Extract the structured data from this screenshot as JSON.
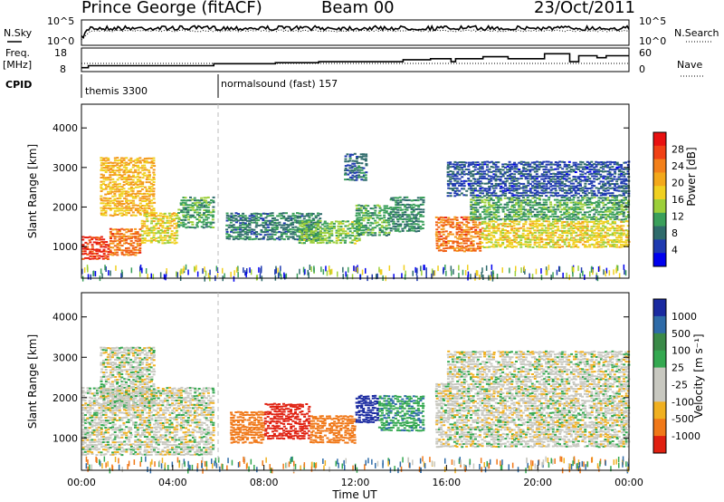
{
  "header": {
    "station": "Prince George (fitACF)",
    "beam": "Beam 00",
    "date": "23/Oct/2011"
  },
  "top_panels": {
    "left_labels": [
      "N.Sky",
      "Freq.",
      "[MHz]",
      "CPID"
    ],
    "right_labels": [
      "N.Search",
      "Nave"
    ],
    "noise_ticks": [
      "10^5",
      "10^0"
    ],
    "freq_ticks": [
      "18",
      "8"
    ],
    "nave_ticks": [
      "60",
      "0"
    ],
    "cpid_segments": [
      {
        "label": "themis 3300",
        "start_hour": 0.0
      },
      {
        "label": "normalsound (fast) 157",
        "start_hour": 6.0
      }
    ],
    "freq_steps_mhz": [
      [
        0.0,
        9.5
      ],
      [
        0.3,
        10.5
      ],
      [
        4.0,
        10.5
      ],
      [
        5.8,
        11.5
      ],
      [
        8.4,
        11.5
      ],
      [
        8.5,
        12.0
      ],
      [
        10.3,
        12.0
      ],
      [
        10.4,
        12.5
      ],
      [
        14.0,
        12.5
      ],
      [
        14.1,
        13.5
      ],
      [
        15.3,
        14.0
      ],
      [
        16.2,
        12.5
      ],
      [
        16.4,
        14.0
      ],
      [
        17.6,
        15.0
      ],
      [
        18.7,
        14.0
      ],
      [
        20.3,
        16.5
      ],
      [
        21.4,
        12.5
      ],
      [
        21.8,
        15.5
      ],
      [
        22.6,
        14.5
      ],
      [
        23.0,
        15.5
      ],
      [
        24.0,
        15.5
      ]
    ]
  },
  "chart_data": [
    {
      "type": "heatmap",
      "name": "power",
      "ylabel": "Slant Range [km]",
      "ylim": [
        200,
        4600
      ],
      "xlim": [
        0,
        24
      ],
      "yticks": [
        "1000",
        "2000",
        "3000",
        "4000"
      ],
      "colorbar": {
        "label": "Power [dB]",
        "ticks": [
          "28",
          "24",
          "20",
          "16",
          "12",
          "8",
          "4"
        ],
        "range": [
          0,
          30
        ]
      },
      "regions": [
        {
          "t": [
            0.0,
            1.2
          ],
          "r": [
            700,
            1300
          ],
          "value": 28
        },
        {
          "t": [
            1.2,
            2.6
          ],
          "r": [
            800,
            1500
          ],
          "value": 24
        },
        {
          "t": [
            2.6,
            4.2
          ],
          "r": [
            1100,
            1900
          ],
          "value": 18
        },
        {
          "t": [
            4.2,
            5.8
          ],
          "r": [
            1500,
            2300
          ],
          "value": 12
        },
        {
          "t": [
            0.8,
            3.2
          ],
          "r": [
            1800,
            3300
          ],
          "value": 20
        },
        {
          "t": [
            6.3,
            10.5
          ],
          "r": [
            1200,
            1900
          ],
          "value": 9
        },
        {
          "t": [
            9.5,
            12.2
          ],
          "r": [
            1100,
            1700
          ],
          "value": 14
        },
        {
          "t": [
            12.0,
            13.5
          ],
          "r": [
            1300,
            2100
          ],
          "value": 12
        },
        {
          "t": [
            13.5,
            15.0
          ],
          "r": [
            1400,
            2300
          ],
          "value": 10
        },
        {
          "t": [
            11.5,
            12.5
          ],
          "r": [
            2700,
            3400
          ],
          "value": 8
        },
        {
          "t": [
            15.5,
            17.5
          ],
          "r": [
            900,
            1800
          ],
          "value": 24
        },
        {
          "t": [
            17.5,
            24.0
          ],
          "r": [
            1000,
            1700
          ],
          "value": 18
        },
        {
          "t": [
            17.0,
            24.0
          ],
          "r": [
            1700,
            2300
          ],
          "value": 12
        },
        {
          "t": [
            16.0,
            24.0
          ],
          "r": [
            2300,
            3200
          ],
          "value": 6
        }
      ]
    },
    {
      "type": "heatmap",
      "name": "velocity",
      "xlabel": "Time UT",
      "ylabel": "Slant Range [km]",
      "ylim": [
        200,
        4600
      ],
      "xlim": [
        0,
        24
      ],
      "xticks": [
        "00:00",
        "04:00",
        "08:00",
        "12:00",
        "16:00",
        "20:00",
        "00:00"
      ],
      "yticks": [
        "1000",
        "2000",
        "3000",
        "4000"
      ],
      "colorbar": {
        "label": "Velocity [m s⁻¹]",
        "ticks": [
          "1000",
          "500",
          "100",
          "25",
          "-25",
          "-100",
          "-500",
          "-1000"
        ]
      },
      "regions": [
        {
          "t": [
            0.0,
            5.8
          ],
          "r": [
            600,
            2300
          ],
          "value": 0
        },
        {
          "t": [
            0.8,
            3.2
          ],
          "r": [
            1800,
            3300
          ],
          "value": 0
        },
        {
          "t": [
            6.5,
            8.0
          ],
          "r": [
            900,
            1700
          ],
          "value": -300
        },
        {
          "t": [
            8.0,
            10.0
          ],
          "r": [
            1000,
            1900
          ],
          "value": -800
        },
        {
          "t": [
            10.0,
            12.0
          ],
          "r": [
            900,
            1600
          ],
          "value": -150
        },
        {
          "t": [
            12.0,
            13.0
          ],
          "r": [
            1400,
            2100
          ],
          "value": 600
        },
        {
          "t": [
            13.0,
            15.0
          ],
          "r": [
            1200,
            2100
          ],
          "value": 80
        },
        {
          "t": [
            15.5,
            24.0
          ],
          "r": [
            800,
            2400
          ],
          "value": 0
        },
        {
          "t": [
            16.0,
            24.0
          ],
          "r": [
            2400,
            3200
          ],
          "value": 0
        }
      ]
    }
  ]
}
